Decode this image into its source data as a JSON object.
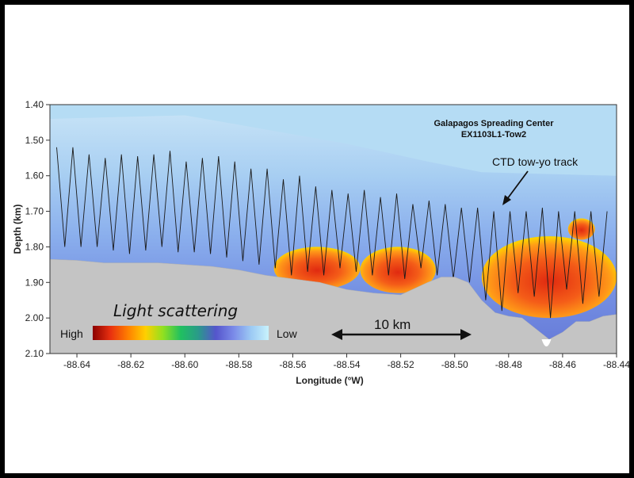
{
  "chart_data": {
    "type": "heatmap",
    "title": "Galapagos Spreading Center",
    "subtitle": "EX1103L1-Tow2",
    "xlabel": "Longitude (°W)",
    "ylabel": "Depth (km)",
    "xlim": [
      -88.65,
      -88.44
    ],
    "ylim": [
      2.1,
      1.4
    ],
    "x_ticks": [
      -88.64,
      -88.62,
      -88.6,
      -88.58,
      -88.56,
      -88.54,
      -88.52,
      -88.5,
      -88.48,
      -88.46,
      -88.44
    ],
    "x_tick_labels": [
      "-88.64",
      "-88.62",
      "-88.60",
      "-88.58",
      "-88.56",
      "-88.54",
      "-88.52",
      "-88.50",
      "-88.48",
      "-88.46",
      "-88.44"
    ],
    "y_ticks": [
      1.4,
      1.5,
      1.6,
      1.7,
      1.8,
      1.9,
      2.0,
      2.1
    ],
    "y_tick_labels": [
      "1.40",
      "1.50",
      "1.60",
      "1.70",
      "1.80",
      "1.90",
      "2.00",
      "2.10"
    ],
    "colorbar": {
      "title": "Light scattering",
      "high_label": "High",
      "low_label": "Low",
      "colors": [
        "#8b0000",
        "#e83010",
        "#ff7f00",
        "#ffd000",
        "#90e020",
        "#20c060",
        "#2a9a8a",
        "#5555cc",
        "#7a8ae8",
        "#9ccaf4",
        "#c8f2fc"
      ]
    },
    "annotations": [
      {
        "text": "CTD tow-yo track",
        "x": -88.476,
        "y": 1.728
      },
      {
        "text": "10 km",
        "x_start": -88.549,
        "x_end": -88.492,
        "y": 2.025
      }
    ],
    "seafloor_profile": {
      "x": [
        -88.65,
        -88.64,
        -88.63,
        -88.62,
        -88.61,
        -88.6,
        -88.59,
        -88.58,
        -88.57,
        -88.56,
        -88.55,
        -88.54,
        -88.53,
        -88.52,
        -88.51,
        -88.505,
        -88.5,
        -88.495,
        -88.49,
        -88.485,
        -88.48,
        -88.475,
        -88.47,
        -88.465,
        -88.46,
        -88.455,
        -88.45,
        -88.445,
        -88.44
      ],
      "depth": [
        1.835,
        1.838,
        1.845,
        1.845,
        1.845,
        1.85,
        1.855,
        1.865,
        1.88,
        1.89,
        1.9,
        1.92,
        1.93,
        1.935,
        1.9,
        1.885,
        1.885,
        1.9,
        1.95,
        1.985,
        1.995,
        2.0,
        2.03,
        2.06,
        2.04,
        2.01,
        2.01,
        1.995,
        1.99
      ]
    },
    "ctd_track": {
      "cast_longitudes": [
        -88.6475,
        -88.6445,
        -88.6415,
        -88.6385,
        -88.6355,
        -88.6325,
        -88.6295,
        -88.6265,
        -88.6235,
        -88.6205,
        -88.6175,
        -88.6145,
        -88.6115,
        -88.6085,
        -88.6055,
        -88.6025,
        -88.5995,
        -88.5965,
        -88.5935,
        -88.5905,
        -88.5875,
        -88.5845,
        -88.5815,
        -88.5785,
        -88.5755,
        -88.5725,
        -88.5695,
        -88.5665,
        -88.5635,
        -88.5605,
        -88.5575,
        -88.5545,
        -88.5515,
        -88.5485,
        -88.5455,
        -88.5425,
        -88.5395,
        -88.5365,
        -88.5335,
        -88.5305,
        -88.5275,
        -88.5245,
        -88.5215,
        -88.5185,
        -88.5155,
        -88.5125,
        -88.5095,
        -88.5065,
        -88.5035,
        -88.5005,
        -88.4975,
        -88.4945,
        -88.4915,
        -88.4885,
        -88.4855,
        -88.4825,
        -88.4795,
        -88.4765,
        -88.4735,
        -88.4705,
        -88.4675,
        -88.4645,
        -88.4615,
        -88.4585,
        -88.4555,
        -88.4525,
        -88.4495,
        -88.4465,
        -88.4435
      ],
      "turn_depths": [
        1.52,
        1.8,
        1.52,
        1.8,
        1.54,
        1.8,
        1.55,
        1.81,
        1.54,
        1.82,
        1.545,
        1.81,
        1.54,
        1.8,
        1.53,
        1.815,
        1.56,
        1.815,
        1.55,
        1.82,
        1.545,
        1.83,
        1.56,
        1.84,
        1.58,
        1.85,
        1.58,
        1.86,
        1.61,
        1.88,
        1.6,
        1.87,
        1.63,
        1.88,
        1.64,
        1.86,
        1.65,
        1.87,
        1.64,
        1.88,
        1.66,
        1.88,
        1.65,
        1.89,
        1.68,
        1.86,
        1.67,
        1.88,
        1.68,
        1.89,
        1.69,
        1.9,
        1.69,
        1.95,
        1.7,
        1.98,
        1.7,
        1.93,
        1.7,
        1.94,
        1.69,
        2.0,
        1.7,
        1.92,
        1.7,
        1.96,
        1.7,
        1.94,
        1.7
      ]
    },
    "plumes": [
      {
        "level": "high",
        "x": [
          -88.567,
          -88.535
        ],
        "depth": [
          1.8,
          1.92
        ]
      },
      {
        "level": "high",
        "x": [
          -88.535,
          -88.507
        ],
        "depth": [
          1.8,
          1.93
        ]
      },
      {
        "level": "high",
        "x": [
          -88.49,
          -88.44
        ],
        "depth": [
          1.77,
          2.0
        ]
      },
      {
        "level": "high",
        "x": [
          -88.458,
          -88.448
        ],
        "depth": [
          1.72,
          1.78
        ]
      }
    ]
  }
}
